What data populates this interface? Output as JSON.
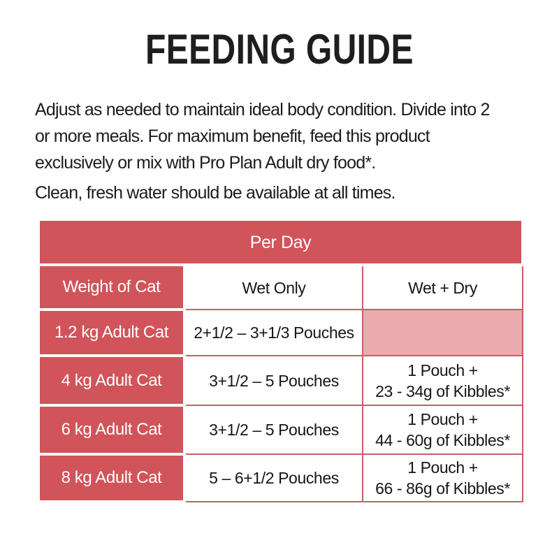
{
  "title": "FEEDING GUIDE",
  "intro": {
    "paragraph1": "Adjust as needed to maintain ideal body condition. Divide into 2\nor more meals. For maximum benefit, feed this product\nexclusively or mix with Pro Plan Adult dry food*.",
    "paragraph2": "Clean, fresh water should be available at all times."
  },
  "table": {
    "span_header": "Per Day",
    "columns": [
      "Weight of Cat",
      "Wet Only",
      "Wet + Dry"
    ],
    "rows": [
      {
        "weight": "1.2 kg Adult Cat",
        "wet_only": "2+1/2 – 3+1/3 Pouches",
        "wet_dry": ""
      },
      {
        "weight": "4 kg Adult Cat",
        "wet_only": "3+1/2 – 5 Pouches",
        "wet_dry": "1 Pouch +\n23 - 34g of Kibbles*"
      },
      {
        "weight": "6 kg Adult Cat",
        "wet_only": "3+1/2 – 5 Pouches",
        "wet_dry": "1 Pouch +\n44 - 60g of Kibbles*"
      },
      {
        "weight": "8 kg Adult Cat",
        "wet_only": "5 – 6+1/2 Pouches",
        "wet_dry": "1 Pouch +\n66 - 86g of Kibbles*"
      }
    ]
  },
  "colors": {
    "accent-red": "#d0545a",
    "light-pink": "#ebabae",
    "grid-line": "#c56066",
    "text-color": "#1b1b1b"
  }
}
